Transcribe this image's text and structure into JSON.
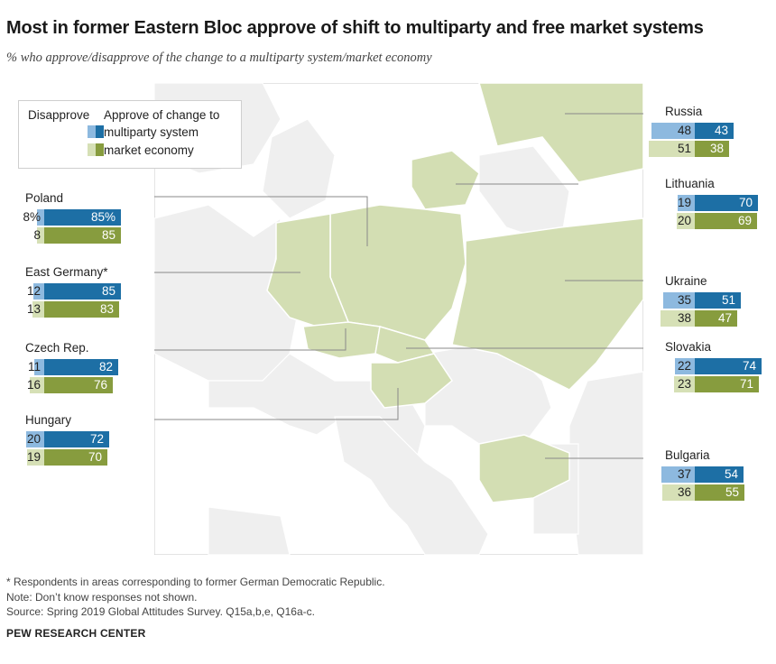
{
  "title": "Most in former Eastern Bloc approve of shift to multiparty and free market systems",
  "subtitle": "% who approve/disapprove of the change to a multiparty system/market economy",
  "legend": {
    "disapprove": "Disapprove",
    "approve": "Approve of change to",
    "multiparty": "multiparty system",
    "market": "market economy"
  },
  "colors": {
    "multiparty_approve": "#1d6fa5",
    "multiparty_disapprove": "#8db9df",
    "market_approve": "#879c3e",
    "market_disapprove": "#d6e0b6",
    "highlight_land": "#d3deb3",
    "other_land": "#efefef",
    "sea": "#ffffff"
  },
  "chart_data": {
    "type": "bar",
    "orientation": "horizontal-diverging",
    "series": [
      {
        "name": "multiparty system",
        "measures": [
          "Disapprove",
          "Approve"
        ]
      },
      {
        "name": "market economy",
        "measures": [
          "Disapprove",
          "Approve"
        ]
      }
    ],
    "countries": [
      {
        "name": "Poland",
        "multiparty": {
          "disapprove": 8,
          "approve": 85,
          "disapprove_label": "8%",
          "approve_label": "85%"
        },
        "market": {
          "disapprove": 8,
          "approve": 85
        }
      },
      {
        "name": "East Germany*",
        "multiparty": {
          "disapprove": 12,
          "approve": 85
        },
        "market": {
          "disapprove": 13,
          "approve": 83
        }
      },
      {
        "name": "Czech Rep.",
        "multiparty": {
          "disapprove": 11,
          "approve": 82
        },
        "market": {
          "disapprove": 16,
          "approve": 76
        }
      },
      {
        "name": "Hungary",
        "multiparty": {
          "disapprove": 20,
          "approve": 72
        },
        "market": {
          "disapprove": 19,
          "approve": 70
        }
      },
      {
        "name": "Russia",
        "multiparty": {
          "disapprove": 48,
          "approve": 43
        },
        "market": {
          "disapprove": 51,
          "approve": 38
        }
      },
      {
        "name": "Lithuania",
        "multiparty": {
          "disapprove": 19,
          "approve": 70
        },
        "market": {
          "disapprove": 20,
          "approve": 69
        }
      },
      {
        "name": "Ukraine",
        "multiparty": {
          "disapprove": 35,
          "approve": 51
        },
        "market": {
          "disapprove": 38,
          "approve": 47
        }
      },
      {
        "name": "Slovakia",
        "multiparty": {
          "disapprove": 22,
          "approve": 74
        },
        "market": {
          "disapprove": 23,
          "approve": 71
        }
      },
      {
        "name": "Bulgaria",
        "multiparty": {
          "disapprove": 37,
          "approve": 54
        },
        "market": {
          "disapprove": 36,
          "approve": 55
        }
      }
    ]
  },
  "footer": {
    "note1": "* Respondents in areas corresponding to former German Democratic Republic.",
    "note2": "Note: Don’t know responses not shown.",
    "source": "Source: Spring 2019 Global Attitudes Survey. Q15a,b,e, Q16a-c.",
    "brand": "PEW RESEARCH CENTER"
  }
}
